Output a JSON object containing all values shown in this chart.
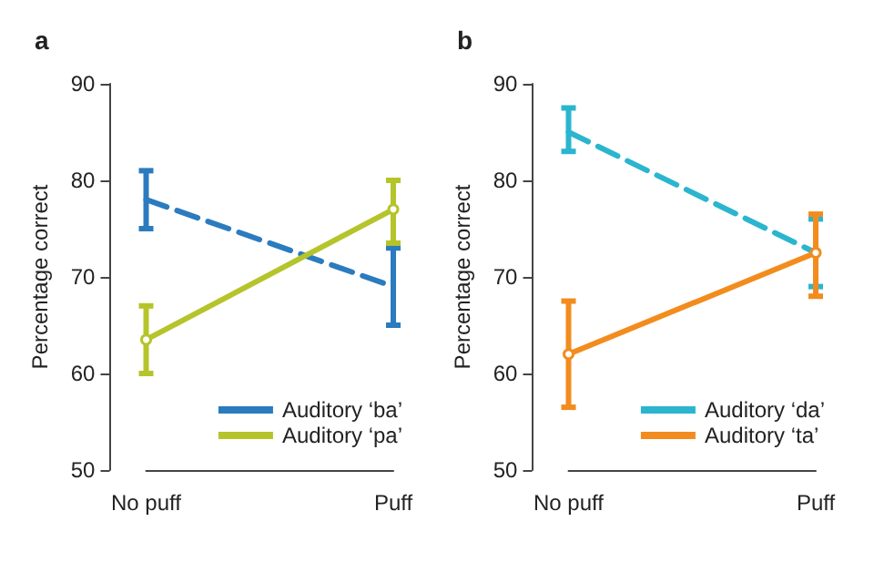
{
  "chart_data": [
    {
      "type": "line",
      "title": "a",
      "ylabel": "Percentage correct",
      "categories": [
        "No puff",
        "Puff"
      ],
      "ylim": [
        50,
        90
      ],
      "yticks": [
        50,
        60,
        70,
        80,
        90
      ],
      "grid": false,
      "legend": "bottom right",
      "series": [
        {
          "name": "Auditory ‘ba’",
          "color": "#2b7bbf",
          "values": [
            78,
            69
          ],
          "errors": [
            [
              75,
              81
            ],
            [
              65,
              73
            ]
          ],
          "line_style": "dashed",
          "marker": "none"
        },
        {
          "name": "Auditory ‘pa’",
          "color": "#b5c42a",
          "values": [
            63.5,
            77
          ],
          "errors": [
            [
              60,
              67
            ],
            [
              73.5,
              80
            ]
          ],
          "line_style": "solid",
          "marker": "circle"
        }
      ]
    },
    {
      "type": "line",
      "title": "b",
      "ylabel": "Percentage correct",
      "categories": [
        "No puff",
        "Puff"
      ],
      "ylim": [
        50,
        90
      ],
      "yticks": [
        50,
        60,
        70,
        80,
        90
      ],
      "grid": false,
      "legend": "bottom right",
      "series": [
        {
          "name": "Auditory ‘da’",
          "color": "#2bb5cf",
          "values": [
            85,
            72.5
          ],
          "errors": [
            [
              83,
              87.5
            ],
            [
              69,
              76
            ]
          ],
          "line_style": "dashed",
          "marker": "none"
        },
        {
          "name": "Auditory ‘ta’",
          "color": "#f28c1e",
          "values": [
            62,
            72.5
          ],
          "errors": [
            [
              56.5,
              67.5
            ],
            [
              68,
              76.5
            ]
          ],
          "line_style": "solid",
          "marker": "circle"
        }
      ]
    }
  ]
}
